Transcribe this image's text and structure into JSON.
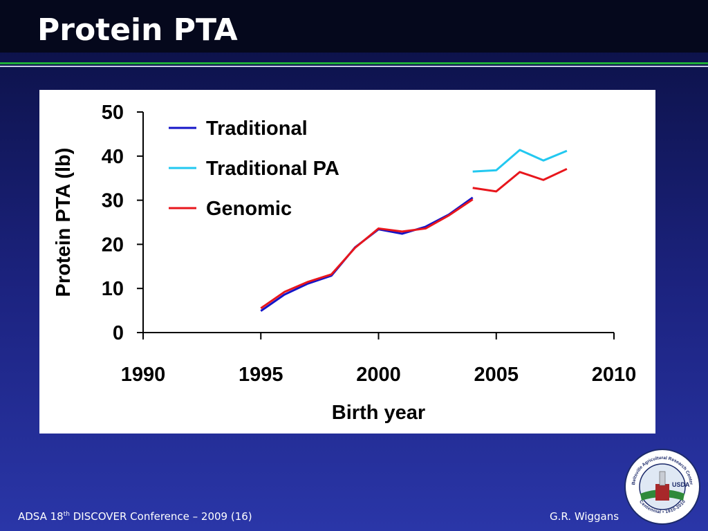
{
  "header": {
    "title": "Protein PTA"
  },
  "chart_data": {
    "type": "line",
    "xlabel": "Birth year",
    "ylabel": "Protein PTA (lb)",
    "xlim": [
      1990,
      2010
    ],
    "xticks": [
      1990,
      1995,
      2000,
      2005,
      2010
    ],
    "ylim": [
      0,
      50
    ],
    "yticks": [
      0,
      10,
      20,
      30,
      40,
      50
    ],
    "legend": "top-left",
    "grid": false,
    "series": [
      {
        "name": "Traditional",
        "color": "#1414c8",
        "x": [
          1995,
          1996,
          1997,
          1998,
          1999,
          2000,
          2001,
          2002,
          2003,
          2004
        ],
        "values": [
          4.9,
          8.6,
          11.1,
          12.9,
          19.3,
          23.4,
          22.4,
          24.0,
          26.8,
          30.6
        ]
      },
      {
        "name": "Traditional PA",
        "color": "#22c8f0",
        "x": [
          2004,
          2005,
          2006,
          2007,
          2008
        ],
        "values": [
          36.5,
          36.8,
          41.4,
          39.0,
          41.2
        ]
      },
      {
        "name": "Genomic",
        "color": "#e8161c",
        "x": [
          1995,
          1996,
          1997,
          1998,
          1999,
          2000,
          2001,
          2002,
          2003,
          2004,
          null,
          2004,
          2005,
          2006,
          2007,
          2008
        ],
        "values": [
          5.5,
          9.2,
          11.5,
          13.2,
          19.2,
          23.6,
          22.9,
          23.6,
          26.6,
          30.2,
          null,
          32.8,
          32.0,
          36.4,
          34.6,
          37.1
        ]
      }
    ]
  },
  "footer": {
    "left": [
      "ADSA 18",
      "th",
      " DISCOVER Conference – 2009 (16)"
    ],
    "right": "G.R. Wiggans"
  },
  "logo": {
    "ring_top": "Beltsville Agricultural Research Center",
    "ring_bottom": "Centennial • 1910-2010",
    "badge": "USDA"
  }
}
